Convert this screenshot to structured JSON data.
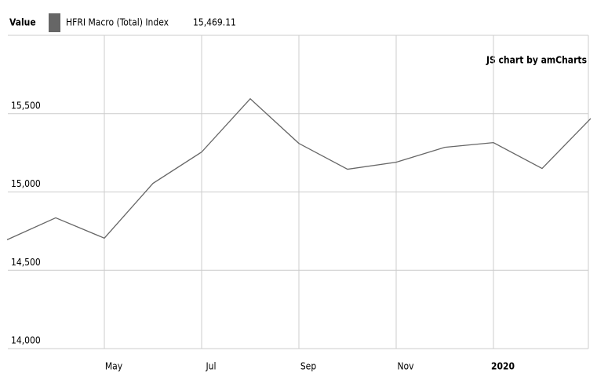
{
  "chart_data": {
    "type": "line",
    "legend_title": "Value",
    "credit": "JS chart by amCharts",
    "categories": [
      null,
      null,
      "May",
      null,
      "Jul",
      null,
      "Sep",
      null,
      "Nov",
      null,
      "2020",
      null,
      null
    ],
    "series": [
      {
        "name": "HFRI Macro (Total) Index",
        "color": "#666666",
        "values": [
          14695,
          14835,
          14705,
          15055,
          15255,
          15595,
          15310,
          15145,
          15190,
          15285,
          15315,
          15150,
          15469.11
        ]
      }
    ],
    "legend_value_label": "15,469.11",
    "ylim": [
      14000,
      16000
    ],
    "yticks": [
      {
        "value": 14000,
        "label": "14,000"
      },
      {
        "value": 14500,
        "label": "14,500"
      },
      {
        "value": 15000,
        "label": "15,000"
      },
      {
        "value": 15500,
        "label": "15,500"
      }
    ],
    "grid": true
  }
}
